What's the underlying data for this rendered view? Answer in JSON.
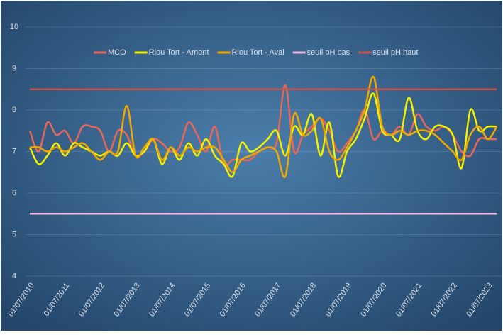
{
  "chart_data": {
    "type": "line",
    "categories": [
      "01/07/2010",
      null,
      null,
      null,
      "01/07/2011",
      null,
      null,
      null,
      "01/07/2012",
      null,
      null,
      null,
      "01/07/2013",
      null,
      null,
      null,
      "01/07/2014",
      null,
      null,
      null,
      "01/07/2015",
      null,
      null,
      null,
      "01/07/2016",
      null,
      null,
      null,
      "01/07/2017",
      null,
      null,
      null,
      "01/07/2018",
      null,
      null,
      null,
      "01/07/2019",
      null,
      null,
      null,
      "01/07/2020",
      null,
      null,
      null,
      "01/07/2021",
      null,
      null,
      null,
      "01/07/2022",
      null,
      null,
      null,
      "01/07/2023",
      null
    ],
    "series": [
      {
        "name": "MCO",
        "color": "#e8675a",
        "values": [
          7.5,
          7.0,
          7.7,
          7.4,
          7.5,
          7.2,
          7.6,
          7.6,
          7.5,
          7.0,
          7.5,
          7.4,
          6.9,
          7.0,
          7.3,
          7.2,
          7.0,
          7.1,
          7.7,
          7.4,
          7.0,
          7.6,
          6.7,
          6.8,
          6.8,
          6.8,
          7.0,
          7.1,
          7.2,
          8.6,
          7.0,
          7.4,
          7.6,
          7.8,
          7.5,
          7.0,
          7.2,
          7.5,
          8.0,
          7.3,
          7.5,
          7.4,
          7.6,
          7.4,
          7.9,
          7.6,
          7.5,
          7.6,
          7.4,
          7.0,
          6.9,
          7.3,
          7.3,
          7.3
        ]
      },
      {
        "name": "Riou Tort  - Amont",
        "color": "#f2f200",
        "values": [
          7.1,
          6.7,
          6.9,
          7.2,
          6.9,
          7.2,
          7.1,
          7.0,
          6.9,
          7.0,
          6.9,
          7.2,
          6.9,
          7.0,
          7.3,
          6.7,
          7.1,
          6.8,
          7.2,
          6.9,
          7.3,
          6.9,
          6.7,
          6.4,
          7.2,
          7.0,
          7.1,
          7.3,
          7.5,
          6.9,
          7.6,
          7.4,
          7.9,
          6.9,
          7.7,
          6.4,
          7.0,
          7.3,
          7.8,
          8.4,
          7.5,
          7.4,
          7.3,
          8.3,
          7.5,
          7.3,
          7.6,
          7.6,
          7.4,
          6.6,
          8.0,
          7.5,
          7.6,
          7.6
        ]
      },
      {
        "name": "Riou Tort - Aval",
        "color": "#f0a800",
        "values": [
          7.1,
          7.1,
          7.0,
          7.1,
          7.0,
          7.1,
          7.2,
          7.0,
          6.8,
          7.0,
          7.0,
          8.1,
          6.9,
          7.1,
          7.3,
          6.8,
          7.1,
          6.9,
          7.1,
          7.0,
          7.1,
          7.1,
          6.8,
          6.5,
          6.8,
          6.9,
          7.0,
          7.1,
          7.0,
          6.4,
          7.9,
          7.4,
          7.5,
          7.8,
          7.0,
          6.8,
          7.1,
          7.5,
          8.0,
          8.8,
          7.6,
          7.4,
          7.5,
          7.4,
          7.5,
          7.5,
          7.4,
          7.2,
          7.0,
          6.8,
          7.4,
          7.6,
          7.3,
          7.6
        ]
      },
      {
        "name": "seuil pH bas",
        "color": "#f4b6e2",
        "values": [
          5.5,
          5.5,
          5.5,
          5.5,
          5.5,
          5.5,
          5.5,
          5.5,
          5.5,
          5.5,
          5.5,
          5.5,
          5.5,
          5.5,
          5.5,
          5.5,
          5.5,
          5.5,
          5.5,
          5.5,
          5.5,
          5.5,
          5.5,
          5.5,
          5.5,
          5.5,
          5.5,
          5.5,
          5.5,
          5.5,
          5.5,
          5.5,
          5.5,
          5.5,
          5.5,
          5.5,
          5.5,
          5.5,
          5.5,
          5.5,
          5.5,
          5.5,
          5.5,
          5.5,
          5.5,
          5.5,
          5.5,
          5.5,
          5.5,
          5.5,
          5.5,
          5.5,
          5.5,
          5.5
        ]
      },
      {
        "name": "seuil pH haut",
        "color": "#c9544c",
        "values": [
          8.5,
          8.5,
          8.5,
          8.5,
          8.5,
          8.5,
          8.5,
          8.5,
          8.5,
          8.5,
          8.5,
          8.5,
          8.5,
          8.5,
          8.5,
          8.5,
          8.5,
          8.5,
          8.5,
          8.5,
          8.5,
          8.5,
          8.5,
          8.5,
          8.5,
          8.5,
          8.5,
          8.5,
          8.5,
          8.5,
          8.5,
          8.5,
          8.5,
          8.5,
          8.5,
          8.5,
          8.5,
          8.5,
          8.5,
          8.5,
          8.5,
          8.5,
          8.5,
          8.5,
          8.5,
          8.5,
          8.5,
          8.5,
          8.5,
          8.5,
          8.5,
          8.5,
          8.5,
          8.5
        ]
      }
    ],
    "ylim": [
      4,
      10
    ],
    "yticks": [
      4,
      5,
      6,
      7,
      8,
      9,
      10
    ],
    "grid": true,
    "smooth": true,
    "legend": "top"
  }
}
